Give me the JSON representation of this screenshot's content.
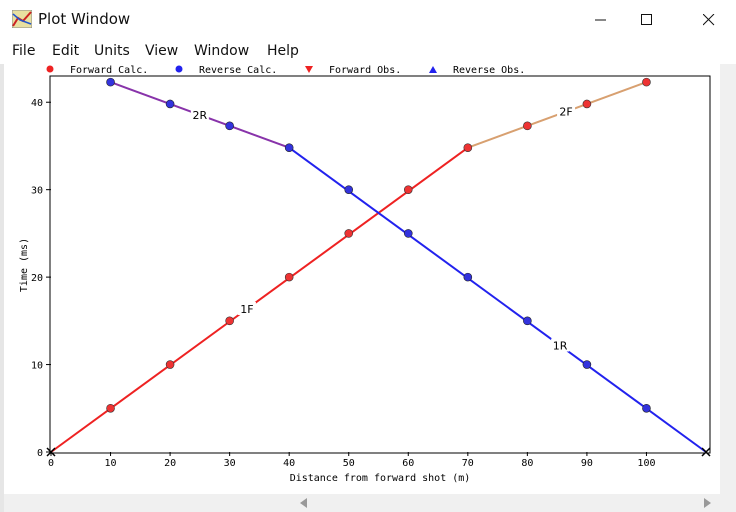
{
  "window": {
    "title": "Plot Window",
    "minimize_icon": "minimize-icon",
    "maximize_icon": "maximize-icon",
    "close_icon": "close-icon",
    "app_icon": "plot-app-icon"
  },
  "menu": [
    "File",
    "Edit",
    "Units",
    "View",
    "Window",
    "Help"
  ],
  "legend": [
    {
      "label": "Forward Calc.",
      "marker": "circle",
      "color": "#ee2222"
    },
    {
      "label": "Reverse Calc.",
      "marker": "circle",
      "color": "#2222ee"
    },
    {
      "label": "Forward Obs.",
      "marker": "triangle-down",
      "color": "#ee2222"
    },
    {
      "label": "Reverse Obs.",
      "marker": "triangle-up",
      "color": "#2222ee"
    }
  ],
  "chart_data": {
    "type": "line",
    "xlabel": "Distance from forward shot (m)",
    "ylabel": "Time (ms)",
    "xlim": [
      0,
      110
    ],
    "ylim": [
      0,
      43
    ],
    "xticks": [
      0,
      10,
      20,
      30,
      40,
      50,
      60,
      70,
      80,
      90,
      100
    ],
    "yticks": [
      0,
      10,
      20,
      30,
      40
    ],
    "grid": false,
    "legend_position": "top",
    "series": [
      {
        "name": "1F",
        "color": "#ee2222",
        "points": [
          [
            0,
            0
          ],
          [
            70,
            34.8
          ]
        ]
      },
      {
        "name": "2F",
        "color": "#d8a070",
        "points": [
          [
            70,
            34.8
          ],
          [
            100,
            42.3
          ]
        ]
      },
      {
        "name": "1R",
        "color": "#2222ee",
        "points": [
          [
            40,
            34.8
          ],
          [
            110,
            0
          ]
        ]
      },
      {
        "name": "2R",
        "color": "#8833aa",
        "points": [
          [
            10,
            42.3
          ],
          [
            40,
            34.8
          ]
        ]
      }
    ],
    "forward_calc": {
      "x": [
        10,
        20,
        30,
        40,
        50,
        60,
        70,
        80,
        90,
        100
      ],
      "y": [
        5,
        10,
        15,
        20,
        25,
        30,
        34.8,
        37.3,
        39.8,
        42.3
      ]
    },
    "reverse_calc": {
      "x": [
        10,
        20,
        30,
        40,
        50,
        60,
        70,
        80,
        90,
        100
      ],
      "y": [
        42.3,
        39.8,
        37.3,
        34.8,
        30,
        25,
        20,
        15,
        10,
        5
      ]
    },
    "shot_points": {
      "x": [
        0,
        110
      ],
      "y": [
        0,
        0
      ]
    }
  },
  "colors": {
    "forward": "#ee2222",
    "reverse": "#2222ee",
    "layer2_forward": "#d8a070",
    "layer2_reverse": "#8833aa"
  }
}
